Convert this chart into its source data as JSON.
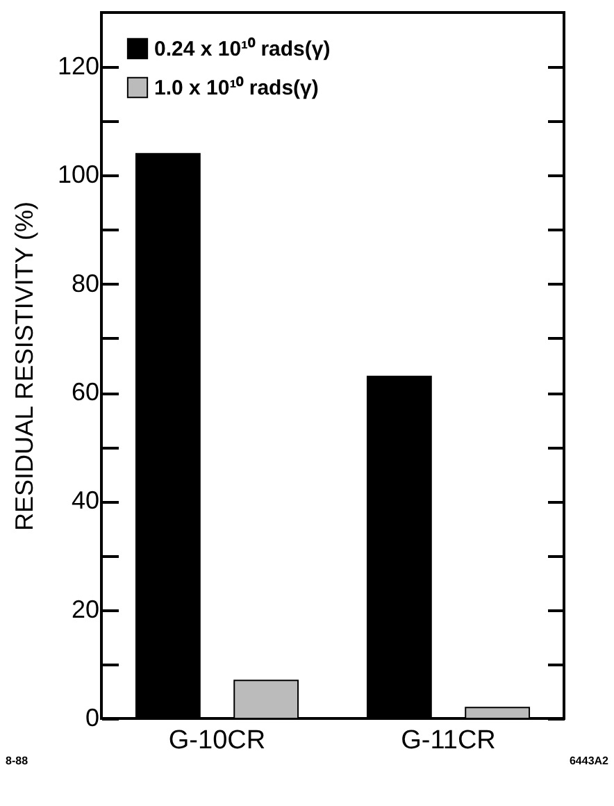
{
  "chart_data": {
    "type": "bar",
    "ylabel": "RESIDUAL RESISTIVITY    (%)",
    "categories": [
      "G-10CR",
      "G-11CR"
    ],
    "series": [
      {
        "name": "0.24 x 10¹⁰ rads(γ)",
        "color": "#000000",
        "values": [
          104,
          63
        ]
      },
      {
        "name": "1.0 x 10¹⁰ rads(γ)",
        "color": "#bbbbbb",
        "values": [
          7,
          2
        ]
      }
    ],
    "ylim": [
      0,
      130
    ],
    "yticks": [
      0,
      {
        "value": 10,
        "label": null
      },
      20,
      {
        "value": 30,
        "label": null
      },
      40,
      {
        "value": 50,
        "label": null
      },
      60,
      {
        "value": 70,
        "label": null
      },
      80,
      {
        "value": 90,
        "label": null
      },
      100,
      {
        "value": 110,
        "label": null
      },
      120
    ],
    "grid": false,
    "legend": "top left",
    "annotations": [
      "8-88",
      "6443A2"
    ]
  }
}
